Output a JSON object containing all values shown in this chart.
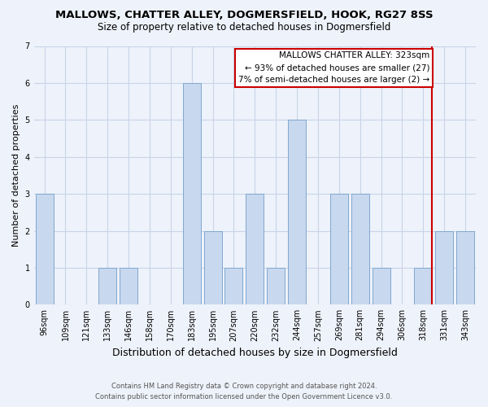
{
  "title": "MALLOWS, CHATTER ALLEY, DOGMERSFIELD, HOOK, RG27 8SS",
  "subtitle": "Size of property relative to detached houses in Dogmersfield",
  "xlabel": "Distribution of detached houses by size in Dogmersfield",
  "ylabel": "Number of detached properties",
  "footer_line1": "Contains HM Land Registry data © Crown copyright and database right 2024.",
  "footer_line2": "Contains public sector information licensed under the Open Government Licence v3.0.",
  "categories": [
    "96sqm",
    "109sqm",
    "121sqm",
    "133sqm",
    "146sqm",
    "158sqm",
    "170sqm",
    "183sqm",
    "195sqm",
    "207sqm",
    "220sqm",
    "232sqm",
    "244sqm",
    "257sqm",
    "269sqm",
    "281sqm",
    "294sqm",
    "306sqm",
    "318sqm",
    "331sqm",
    "343sqm"
  ],
  "values": [
    3,
    0,
    0,
    1,
    1,
    0,
    0,
    6,
    2,
    1,
    3,
    1,
    5,
    0,
    3,
    3,
    1,
    0,
    1,
    2,
    2
  ],
  "bar_color": "#c8d8ee",
  "bar_edge_color": "#7fa8d0",
  "grid_color": "#c8d4e8",
  "background_color": "#eef2fa",
  "subject_line_color": "#cc0000",
  "annotation_text": "MALLOWS CHATTER ALLEY: 323sqm\n← 93% of detached houses are smaller (27)\n7% of semi-detached houses are larger (2) →",
  "annotation_box_color": "#cc0000",
  "ylim": [
    0,
    7
  ],
  "yticks": [
    0,
    1,
    2,
    3,
    4,
    5,
    6,
    7
  ],
  "title_fontsize": 9.5,
  "subtitle_fontsize": 8.5,
  "ylabel_fontsize": 8,
  "xlabel_fontsize": 9,
  "tick_fontsize": 7,
  "annotation_fontsize": 7.5,
  "footer_fontsize": 6
}
